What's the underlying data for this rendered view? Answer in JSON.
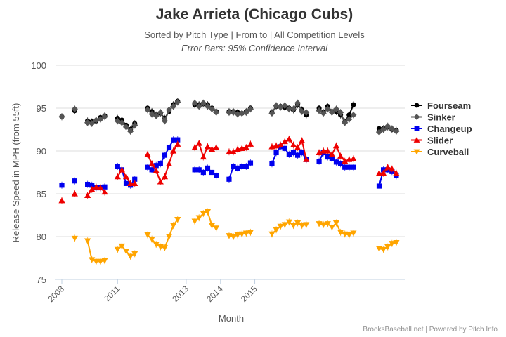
{
  "chart_data": {
    "type": "line",
    "title": "Jake Arrieta (Chicago Cubs)",
    "subtitle": "Sorted by Pitch Type | From to | All Competition Levels",
    "subtitle2": "Error Bars: 95% Confidence Interval",
    "xlabel": "Month",
    "ylabel": "Release Speed in MPH (from 55ft)",
    "credit": "BrooksBaseball.net | Powered by Pitch Info",
    "ylim": [
      75,
      100
    ],
    "yticks": [
      75,
      80,
      85,
      90,
      95,
      100
    ],
    "xticks": [
      "2008",
      "2011",
      "2013",
      "2014",
      "2015"
    ],
    "x_slots": 80,
    "x_tick_slots": [
      0,
      13,
      29,
      37,
      45
    ],
    "grid": true,
    "legend_position": "right",
    "series": [
      {
        "name": "Fourseam",
        "color": "#000000",
        "marker": "circle",
        "segments": [
          {
            "x": [
              0
            ],
            "y": [
              94.0
            ]
          },
          {
            "x": [
              3
            ],
            "y": [
              94.7
            ]
          },
          {
            "x": [
              6,
              7,
              8,
              9,
              10
            ],
            "y": [
              93.5,
              93.4,
              93.5,
              93.9,
              94.1
            ]
          },
          {
            "x": [
              13,
              14,
              15,
              16,
              17
            ],
            "y": [
              93.8,
              93.6,
              93.0,
              92.5,
              93.2
            ]
          },
          {
            "x": [
              20,
              21,
              22,
              23,
              24,
              25,
              26,
              27
            ],
            "y": [
              95.0,
              94.6,
              94.2,
              94.4,
              93.8,
              94.6,
              95.4,
              95.8
            ]
          },
          {
            "x": [
              31,
              32,
              33,
              34,
              35,
              36
            ],
            "y": [
              95.4,
              95.4,
              95.5,
              95.4,
              95.0,
              94.6
            ]
          },
          {
            "x": [
              39,
              40,
              41,
              42,
              43,
              44
            ],
            "y": [
              94.6,
              94.6,
              94.5,
              94.4,
              94.6,
              95.0
            ]
          },
          {
            "x": [
              49,
              50,
              51,
              52,
              53,
              54,
              55,
              56,
              57
            ],
            "y": [
              94.5,
              95.2,
              95.2,
              95.1,
              95.0,
              94.8,
              95.4,
              94.8,
              94.2
            ]
          },
          {
            "x": [
              60,
              61,
              62,
              63,
              64,
              65,
              66,
              67,
              68
            ],
            "y": [
              95.0,
              94.5,
              95.2,
              94.6,
              94.6,
              94.2,
              93.4,
              94.2,
              95.4
            ]
          },
          {
            "x": [
              74,
              75,
              76,
              77,
              78
            ],
            "y": [
              92.6,
              92.6,
              92.8,
              92.5,
              92.4
            ]
          }
        ]
      },
      {
        "name": "Sinker",
        "color": "#555555",
        "marker": "diamond",
        "segments": [
          {
            "x": [
              0
            ],
            "y": [
              94.0
            ]
          },
          {
            "x": [
              3
            ],
            "y": [
              94.9
            ]
          },
          {
            "x": [
              6,
              7,
              8,
              9,
              10
            ],
            "y": [
              93.3,
              93.2,
              93.6,
              93.7,
              94.0
            ]
          },
          {
            "x": [
              13,
              14,
              15,
              16,
              17
            ],
            "y": [
              93.5,
              93.3,
              92.8,
              92.3,
              93.0
            ]
          },
          {
            "x": [
              20,
              21,
              22,
              23,
              24,
              25,
              26,
              27
            ],
            "y": [
              94.8,
              94.3,
              94.1,
              94.5,
              93.5,
              94.8,
              95.2,
              95.7
            ]
          },
          {
            "x": [
              31,
              32,
              33,
              34,
              35,
              36
            ],
            "y": [
              95.6,
              95.2,
              95.6,
              95.2,
              94.9,
              94.5
            ]
          },
          {
            "x": [
              39,
              40,
              41,
              42,
              43,
              44
            ],
            "y": [
              94.5,
              94.5,
              94.3,
              94.4,
              94.5,
              94.9
            ]
          },
          {
            "x": [
              49,
              50,
              51,
              52,
              53,
              54,
              55,
              56,
              57
            ],
            "y": [
              94.4,
              95.3,
              95.1,
              95.3,
              94.9,
              94.9,
              95.6,
              94.6,
              94.5
            ]
          },
          {
            "x": [
              60,
              61,
              62,
              63,
              64,
              65,
              66,
              67,
              68
            ],
            "y": [
              94.7,
              94.4,
              94.9,
              94.5,
              94.9,
              94.5,
              93.3,
              93.7,
              94.2
            ]
          },
          {
            "x": [
              74,
              75,
              76,
              77,
              78
            ],
            "y": [
              92.2,
              92.5,
              92.9,
              92.6,
              92.3
            ]
          }
        ]
      },
      {
        "name": "Changeup",
        "color": "#0000ee",
        "marker": "square",
        "segments": [
          {
            "x": [
              0
            ],
            "y": [
              86.0
            ]
          },
          {
            "x": [
              3
            ],
            "y": [
              86.5
            ]
          },
          {
            "x": [
              6,
              7,
              8,
              9,
              10
            ],
            "y": [
              86.1,
              86.0,
              85.7,
              85.7,
              85.8
            ]
          },
          {
            "x": [
              13,
              14,
              15,
              16,
              17
            ],
            "y": [
              88.2,
              87.8,
              86.2,
              86.0,
              86.7
            ]
          },
          {
            "x": [
              20,
              21,
              22,
              23,
              24,
              25,
              26,
              27
            ],
            "y": [
              88.1,
              87.8,
              88.3,
              88.5,
              89.5,
              90.4,
              91.3,
              91.3
            ]
          },
          {
            "x": [
              31,
              32,
              33,
              34,
              35,
              36
            ],
            "y": [
              87.8,
              87.8,
              87.5,
              88.0,
              87.5,
              87.1
            ]
          },
          {
            "x": [
              39,
              40,
              41,
              42,
              43,
              44
            ],
            "y": [
              86.7,
              88.2,
              88.0,
              88.2,
              88.2,
              88.6
            ]
          },
          {
            "x": [
              49,
              50,
              51,
              52,
              53,
              54,
              55,
              56,
              57
            ],
            "y": [
              88.5,
              89.8,
              90.5,
              90.3,
              89.6,
              89.8,
              89.5,
              89.8,
              89.0
            ]
          },
          {
            "x": [
              60,
              61,
              62,
              63,
              64,
              65,
              66,
              67,
              68
            ],
            "y": [
              88.8,
              89.8,
              89.3,
              89.1,
              88.7,
              88.5,
              88.1,
              88.1,
              88.1
            ]
          },
          {
            "x": [
              74,
              75,
              76,
              77,
              78
            ],
            "y": [
              85.9,
              87.8,
              87.8,
              87.6,
              87.1
            ]
          }
        ]
      },
      {
        "name": "Slider",
        "color": "#ee0000",
        "marker": "triangle",
        "segments": [
          {
            "x": [
              0
            ],
            "y": [
              84.2
            ]
          },
          {
            "x": [
              3
            ],
            "y": [
              85.0
            ]
          },
          {
            "x": [
              6,
              7,
              8,
              9,
              10
            ],
            "y": [
              84.8,
              85.5,
              85.8,
              85.7,
              85.2
            ]
          },
          {
            "x": [
              13,
              14,
              15,
              16,
              17
            ],
            "y": [
              87.0,
              87.8,
              87.0,
              86.2,
              86.2
            ]
          },
          {
            "x": [
              20,
              21,
              22,
              23,
              24,
              25,
              26,
              27
            ],
            "y": [
              89.6,
              88.5,
              87.7,
              86.4,
              87.0,
              88.5,
              90.0,
              90.8
            ]
          },
          {
            "x": [
              31,
              32,
              33,
              34,
              35,
              36
            ],
            "y": [
              90.4,
              90.9,
              89.3,
              90.5,
              90.2,
              90.4
            ]
          },
          {
            "x": [
              39,
              40,
              41,
              42,
              43,
              44
            ],
            "y": [
              89.9,
              89.9,
              90.2,
              90.3,
              90.4,
              90.8
            ]
          },
          {
            "x": [
              49,
              50,
              51,
              52,
              53,
              54,
              55,
              56,
              57
            ],
            "y": [
              90.5,
              90.6,
              90.7,
              91.1,
              91.4,
              90.7,
              90.4,
              91.2,
              89.0
            ]
          },
          {
            "x": [
              60,
              61,
              62,
              63,
              64,
              65,
              66,
              67,
              68
            ],
            "y": [
              89.8,
              90.0,
              90.0,
              89.6,
              90.6,
              89.4,
              88.8,
              89.0,
              89.1
            ]
          },
          {
            "x": [
              74,
              75,
              76,
              77,
              78
            ],
            "y": [
              87.4,
              87.4,
              88.1,
              87.9,
              87.4
            ]
          }
        ]
      },
      {
        "name": "Curveball",
        "color": "#ffa500",
        "marker": "triangle-down",
        "segments": [
          {
            "x": [
              3
            ],
            "y": [
              79.8
            ]
          },
          {
            "x": [
              6,
              7,
              8,
              9,
              10
            ],
            "y": [
              79.5,
              77.3,
              77.1,
              77.1,
              77.2
            ]
          },
          {
            "x": [
              13,
              14,
              15,
              16,
              17
            ],
            "y": [
              78.5,
              78.9,
              78.3,
              77.7,
              78.0
            ]
          },
          {
            "x": [
              20,
              21,
              22,
              23,
              24,
              25,
              26,
              27
            ],
            "y": [
              80.2,
              79.7,
              79.1,
              78.8,
              78.7,
              80.0,
              81.3,
              82.0
            ]
          },
          {
            "x": [
              31,
              32,
              33,
              34,
              35,
              36
            ],
            "y": [
              81.8,
              82.2,
              82.7,
              82.9,
              81.3,
              81.0
            ]
          },
          {
            "x": [
              39,
              40,
              41,
              42,
              43,
              44
            ],
            "y": [
              80.1,
              80.0,
              80.2,
              80.3,
              80.4,
              80.5
            ]
          },
          {
            "x": [
              49,
              50,
              51,
              52,
              53,
              54,
              55,
              56,
              57
            ],
            "y": [
              80.3,
              80.8,
              81.2,
              81.4,
              81.7,
              81.3,
              81.6,
              81.3,
              81.4
            ]
          },
          {
            "x": [
              60,
              61,
              62,
              63,
              64,
              65,
              66,
              67,
              68
            ],
            "y": [
              81.5,
              81.4,
              81.5,
              81.1,
              81.6,
              80.5,
              80.3,
              80.2,
              80.4
            ]
          },
          {
            "x": [
              74,
              75,
              76,
              77,
              78
            ],
            "y": [
              78.6,
              78.5,
              78.8,
              79.2,
              79.3
            ]
          }
        ]
      }
    ]
  }
}
